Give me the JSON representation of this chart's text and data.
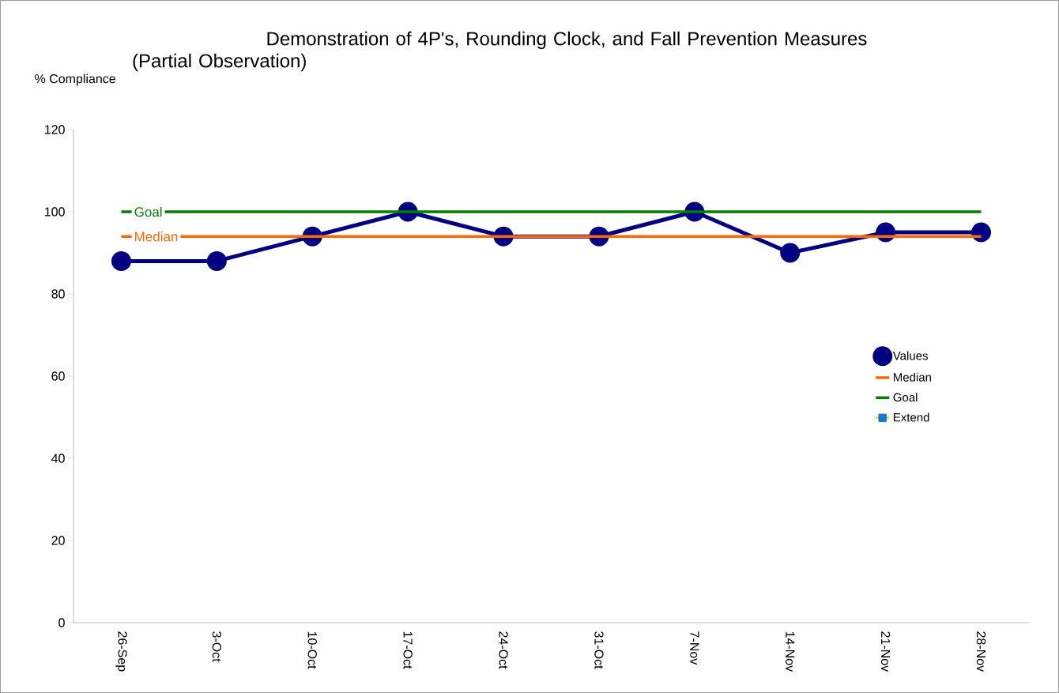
{
  "chart_data": {
    "type": "line",
    "title": "Demonstration of 4P's, Rounding Clock, and Fall Prevention Measures\n(Partial Observation)",
    "ylabel": "% Compliance",
    "categories": [
      "26-Sep",
      "3-Oct",
      "10-Oct",
      "17-Oct",
      "24-Oct",
      "31-Oct",
      "7-Nov",
      "14-Nov",
      "21-Nov",
      "28-Nov"
    ],
    "series": [
      {
        "name": "Values",
        "color": "#000080",
        "marker": "circle",
        "values": [
          88,
          88,
          94,
          100,
          94,
          94,
          100,
          90,
          95,
          95
        ]
      },
      {
        "name": "Median",
        "color": "#ff6600",
        "values": [
          94,
          94,
          94,
          94,
          94,
          94,
          94,
          94,
          94,
          94
        ]
      },
      {
        "name": "Goal",
        "color": "#008000",
        "values": [
          100,
          100,
          100,
          100,
          100,
          100,
          100,
          100,
          100,
          100
        ]
      },
      {
        "name": "Extend",
        "color": "#ffcc00",
        "marker": "square",
        "values": [
          null,
          null,
          null,
          null,
          null,
          null,
          null,
          null,
          null,
          null
        ]
      }
    ],
    "annotations": [
      {
        "text": "Goal",
        "x": "26-Sep",
        "y": 100
      },
      {
        "text": "Median",
        "x": "26-Sep",
        "y": 94
      }
    ],
    "ylim": [
      0,
      120
    ],
    "yticks": [
      0,
      20,
      40,
      60,
      80,
      100,
      120
    ],
    "legend": "right",
    "grid": false
  }
}
